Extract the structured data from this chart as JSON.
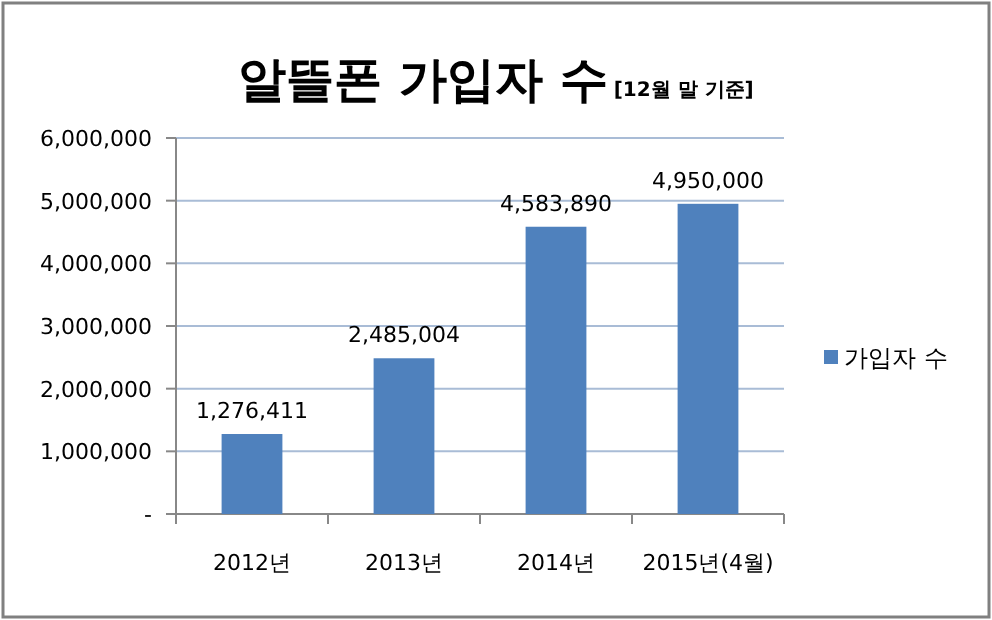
{
  "chart_data": {
    "type": "bar",
    "title": "알뜰폰 가입자 수",
    "subtitle": "[12월 말 기준]",
    "categories": [
      "2012년",
      "2013년",
      "2014년",
      "2015년(4월)"
    ],
    "series": [
      {
        "name": "가입자 수",
        "color": "#4f81bd",
        "values": [
          1276411,
          2485004,
          4583890,
          4950000
        ]
      }
    ],
    "ylim": [
      0,
      6000000
    ],
    "yticks": [
      {
        "value": 0,
        "label": "-"
      },
      {
        "value": 1000000,
        "label": "1,000,000"
      },
      {
        "value": 2000000,
        "label": "2,000,000"
      },
      {
        "value": 3000000,
        "label": "3,000,000"
      },
      {
        "value": 4000000,
        "label": "4,000,000"
      },
      {
        "value": 5000000,
        "label": "5,000,000"
      },
      {
        "value": 6000000,
        "label": "6,000,000"
      }
    ],
    "value_labels": [
      "1,276,411",
      "2,485,004",
      "4,583,890",
      "4,950,000"
    ],
    "grid": "y",
    "legend": "right"
  }
}
